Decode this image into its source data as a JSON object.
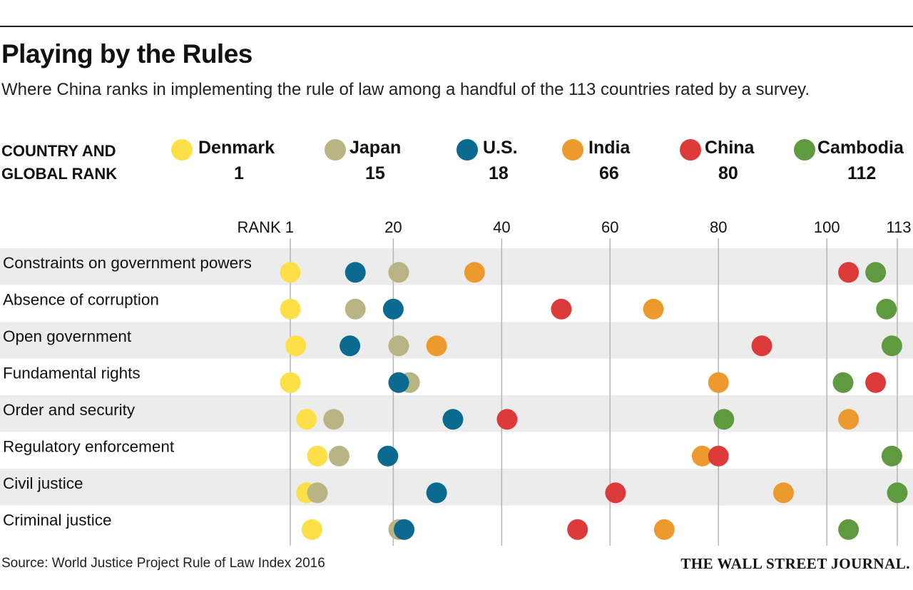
{
  "title": "Playing by the Rules",
  "subtitle": "Where China ranks in implementing the rule of law among a handful of the 113 countries rated by a survey.",
  "legend_heading_line1": "COUNTRY AND",
  "legend_heading_line2": "GLOBAL RANK",
  "source": "Source: World Justice Project Rule of Law Index 2016",
  "publisher": "THE WALL STREET JOURNAL.",
  "chart_data": {
    "type": "scatter",
    "x_axis": {
      "range": [
        1,
        113
      ],
      "ticks": [
        {
          "value": 1,
          "label": "RANK 1"
        },
        {
          "value": 20,
          "label": "20"
        },
        {
          "value": 40,
          "label": "40"
        },
        {
          "value": 60,
          "label": "60"
        },
        {
          "value": 80,
          "label": "80"
        },
        {
          "value": 100,
          "label": "100"
        },
        {
          "value": 113,
          "label": "113"
        }
      ],
      "grid": true
    },
    "categories": [
      "Constraints on government powers",
      "Absence of corruption",
      "Open government",
      "Fundamental rights",
      "Order and security",
      "Regulatory enforcement",
      "Civil justice",
      "Criminal justice"
    ],
    "series": [
      {
        "name": "Denmark",
        "global_rank": "1",
        "color": "#fde047",
        "values": [
          1,
          1,
          2,
          1,
          4,
          6,
          4,
          5
        ]
      },
      {
        "name": "Japan",
        "global_rank": "15",
        "color": "#b9b484",
        "values": [
          21,
          13,
          21,
          23,
          9,
          10,
          6,
          21
        ]
      },
      {
        "name": "U.S.",
        "global_rank": "18",
        "color": "#0b6a8f",
        "values": [
          13,
          20,
          12,
          21,
          31,
          19,
          28,
          22
        ]
      },
      {
        "name": "India",
        "global_rank": "66",
        "color": "#ec9a2e",
        "values": [
          35,
          68,
          28,
          80,
          104,
          77,
          92,
          70
        ]
      },
      {
        "name": "China",
        "global_rank": "80",
        "color": "#dc3a3b",
        "values": [
          104,
          51,
          88,
          109,
          41,
          80,
          61,
          54
        ]
      },
      {
        "name": "Cambodia",
        "global_rank": "112",
        "color": "#5f9a40",
        "values": [
          109,
          111,
          112,
          103,
          81,
          112,
          113,
          104
        ]
      }
    ]
  }
}
